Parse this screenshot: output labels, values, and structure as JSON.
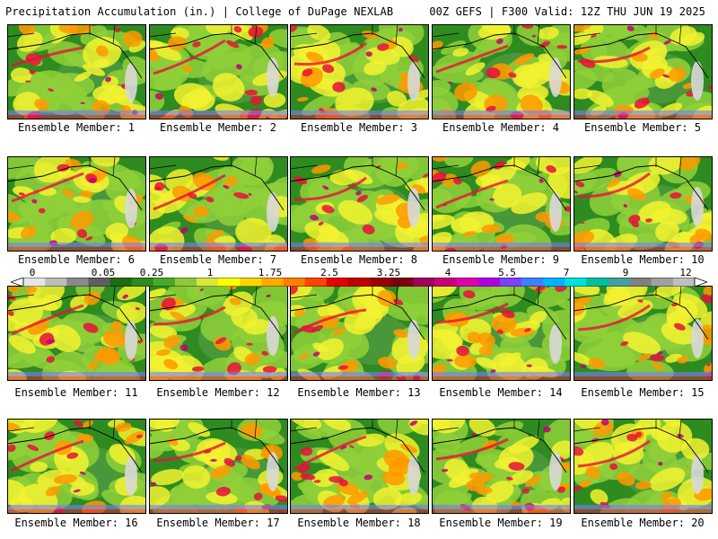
{
  "header": {
    "title_left": "Precipitation Accumulation (in.) | College of DuPage NEXLAB",
    "title_right": "00Z GEFS | F300 Valid: 12Z THU JUN 19 2025"
  },
  "caption_prefix": "Ensemble Member: ",
  "members": [
    {
      "label": "Ensemble Member: 1"
    },
    {
      "label": "Ensemble Member: 2"
    },
    {
      "label": "Ensemble Member: 3"
    },
    {
      "label": "Ensemble Member: 4"
    },
    {
      "label": "Ensemble Member: 5"
    },
    {
      "label": "Ensemble Member: 6"
    },
    {
      "label": "Ensemble Member: 7"
    },
    {
      "label": "Ensemble Member: 8"
    },
    {
      "label": "Ensemble Member: 9"
    },
    {
      "label": "Ensemble Member: 10"
    },
    {
      "label": "Ensemble Member: 11"
    },
    {
      "label": "Ensemble Member: 12"
    },
    {
      "label": "Ensemble Member: 13"
    },
    {
      "label": "Ensemble Member: 14"
    },
    {
      "label": "Ensemble Member: 15"
    },
    {
      "label": "Ensemble Member: 16"
    },
    {
      "label": "Ensemble Member: 17"
    },
    {
      "label": "Ensemble Member: 18"
    },
    {
      "label": "Ensemble Member: 19"
    },
    {
      "label": "Ensemble Member: 20"
    }
  ],
  "legend": {
    "tick_labels": [
      "0",
      "0.05",
      "0.25",
      "1",
      "1.75",
      "2.5",
      "3.25",
      "4",
      "5.5",
      "7",
      "9",
      "12"
    ],
    "colors": [
      "#e6e6e6",
      "#bdbdbd",
      "#8a8a8a",
      "#5f5f5f",
      "#1e6b10",
      "#2e8b1f",
      "#4aa92a",
      "#8fc93a",
      "#d7e83a",
      "#ffff00",
      "#ffd400",
      "#ffaa00",
      "#ff7f00",
      "#ff4500",
      "#e60000",
      "#c00000",
      "#9b0000",
      "#7a0010",
      "#a0005a",
      "#c8007a",
      "#e000b0",
      "#b000e0",
      "#8040ff",
      "#4080ff",
      "#00b4ff",
      "#00e0e0",
      "#00c0a0",
      "#40a0a0",
      "#808080",
      "#a0a0a0",
      "#c0c0c0"
    ]
  },
  "map_palette": {
    "land": "#2e8b1f",
    "dry": "#4f9a3f",
    "light": "#8fd03a",
    "moderate": "#f2f230",
    "heavy": "#ff9900",
    "very_heavy": "#e8103a",
    "extreme": "#c0007a",
    "tropical": "#7a7aff",
    "snow": "#d8d8d8",
    "border": "#000000"
  }
}
